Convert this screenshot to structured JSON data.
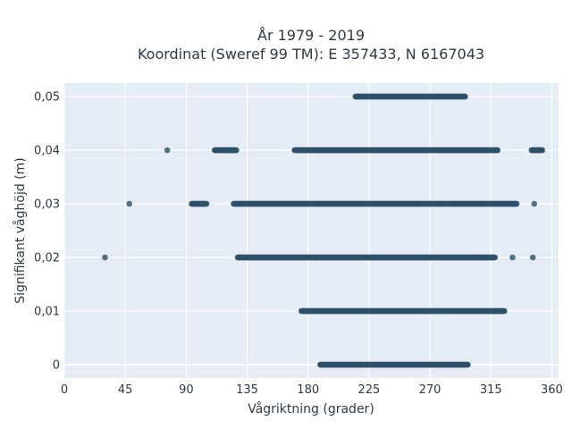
{
  "chart_data": {
    "type": "scatter",
    "title": "År 1979 - 2019",
    "subtitle": "Koordinat (Sweref 99 TM): E 357433, N 6167043",
    "xlabel": "Vågriktning (grader)",
    "ylabel": "Signifikant våghöjd (m)",
    "xlim": [
      0,
      365
    ],
    "ylim": [
      -0.0025,
      0.0525
    ],
    "xticks": [
      0,
      45,
      90,
      135,
      180,
      225,
      270,
      315,
      360
    ],
    "xtick_labels": [
      "0",
      "45",
      "90",
      "135",
      "180",
      "225",
      "270",
      "315",
      "360"
    ],
    "yticks": [
      0,
      0.01,
      0.02,
      0.03,
      0.04,
      0.05
    ],
    "ytick_labels": [
      "0",
      "0,01",
      "0,02",
      "0,03",
      "0,04",
      "0,05"
    ],
    "grid": true,
    "colors": {
      "background": "#e5ecf6",
      "marker": "#2e5068",
      "grid": "#ffffff"
    },
    "series": [
      {
        "y": 0,
        "x": [
          189,
          200,
          210,
          220,
          230,
          240,
          250,
          260,
          270,
          280,
          290,
          298
        ]
      },
      {
        "y": 0.01,
        "x": [
          175,
          185,
          196,
          206,
          216,
          226,
          236,
          246,
          256,
          266,
          276,
          286,
          296,
          306,
          314,
          325
        ]
      },
      {
        "y": 0.02,
        "x": [
          30,
          128,
          135,
          138,
          141,
          144,
          147,
          158,
          166,
          170,
          176,
          182,
          186,
          189,
          195,
          205,
          215,
          225,
          235,
          245,
          255,
          265,
          275,
          285,
          295,
          305,
          315,
          318,
          331,
          346
        ]
      },
      {
        "y": 0.03,
        "x": [
          48,
          94,
          104,
          105,
          125,
          129,
          135,
          140,
          148,
          150,
          158,
          163,
          166,
          168,
          170,
          175,
          180,
          184,
          190,
          200,
          210,
          220,
          230,
          240,
          250,
          260,
          270,
          280,
          290,
          300,
          310,
          316,
          318,
          325,
          330,
          333,
          334,
          347
        ]
      },
      {
        "y": 0.04,
        "x": [
          76,
          111,
          116,
          127,
          170,
          175,
          181,
          190,
          199,
          209,
          219,
          229,
          239,
          249,
          259,
          269,
          279,
          289,
          299,
          309,
          315,
          319,
          320,
          345,
          353
        ]
      },
      {
        "y": 0.05,
        "x": [
          215,
          225,
          235,
          245,
          255,
          265,
          275,
          285,
          292,
          296
        ]
      }
    ]
  }
}
